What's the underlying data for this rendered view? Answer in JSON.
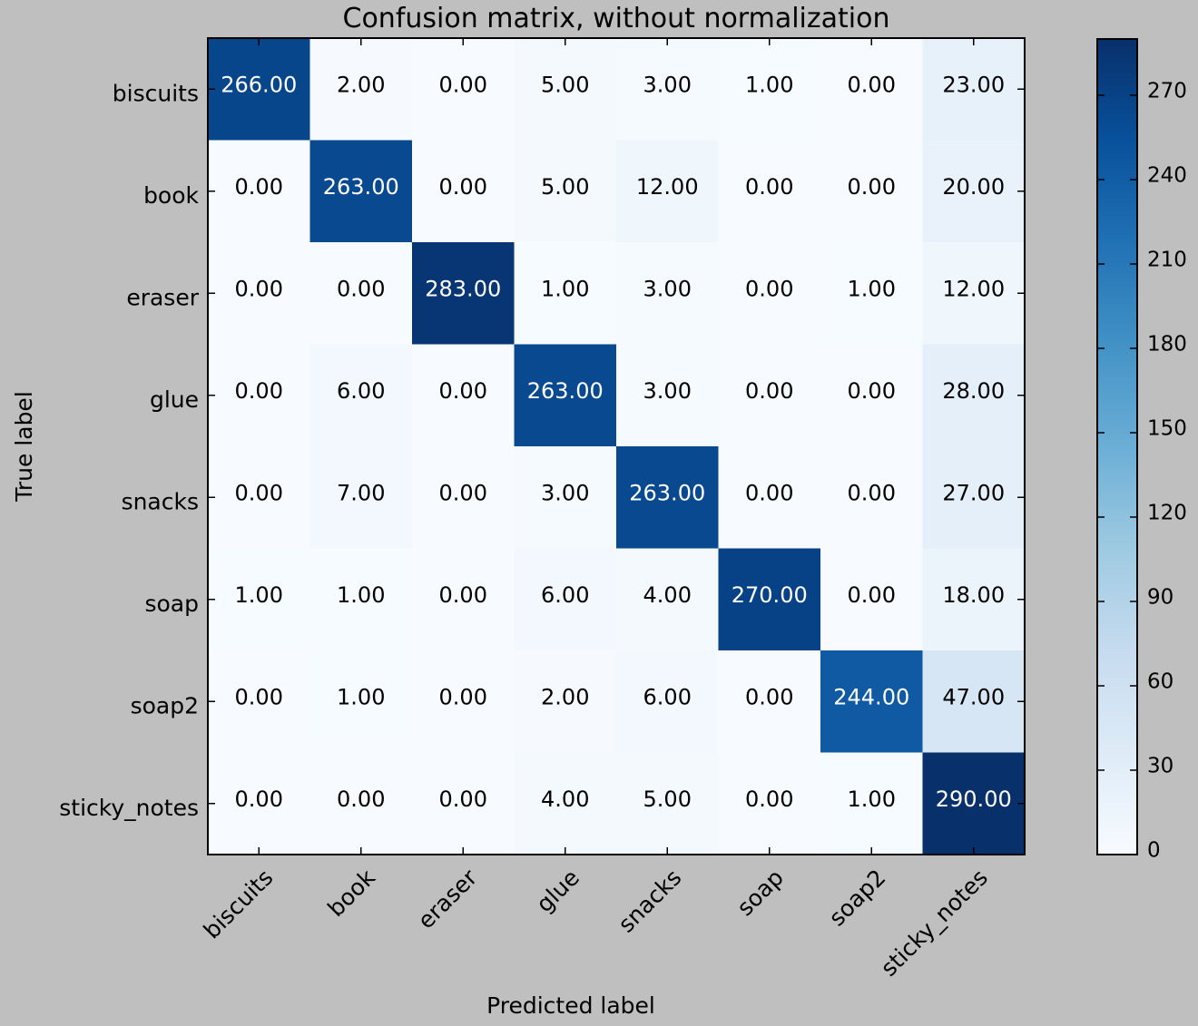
{
  "chart_data": {
    "type": "heatmap",
    "title": "Confusion matrix, without normalization",
    "xlabel": "Predicted label",
    "ylabel": "True label",
    "x_categories": [
      "biscuits",
      "book",
      "eraser",
      "glue",
      "snacks",
      "soap",
      "soap2",
      "sticky_notes"
    ],
    "y_categories": [
      "biscuits",
      "book",
      "eraser",
      "glue",
      "snacks",
      "soap",
      "soap2",
      "sticky_notes"
    ],
    "values": [
      [
        266,
        2,
        0,
        5,
        3,
        1,
        0,
        23
      ],
      [
        0,
        263,
        0,
        5,
        12,
        0,
        0,
        20
      ],
      [
        0,
        0,
        283,
        1,
        3,
        0,
        1,
        12
      ],
      [
        0,
        6,
        0,
        263,
        3,
        0,
        0,
        28
      ],
      [
        0,
        7,
        0,
        3,
        263,
        0,
        0,
        27
      ],
      [
        1,
        1,
        0,
        6,
        4,
        270,
        0,
        18
      ],
      [
        0,
        1,
        0,
        2,
        6,
        0,
        244,
        47
      ],
      [
        0,
        0,
        0,
        4,
        5,
        0,
        1,
        290
      ]
    ],
    "value_format_decimals": 2,
    "colormap": "Blues",
    "color_range": [
      0,
      290
    ],
    "colorbar_ticks": [
      0,
      30,
      60,
      90,
      120,
      150,
      180,
      210,
      240,
      270
    ],
    "colors": {
      "background": "#bfbfbf",
      "low": "#f7fbff",
      "high": "#08306b",
      "text_dark": "#000000",
      "text_light": "#ffffff"
    }
  }
}
